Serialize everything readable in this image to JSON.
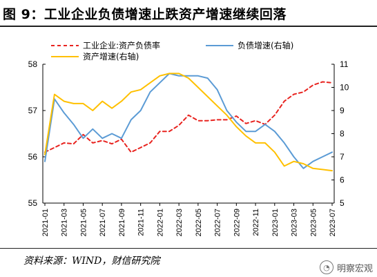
{
  "header": {
    "title": "图 9：工业企业负债增速止跌资产增速继续回落"
  },
  "footer": {
    "source": "资料来源：WIND，财信研究院",
    "watermark": "明察宏观",
    "watermark_icon": "wechat-icon"
  },
  "chart_data": {
    "type": "line",
    "title": "",
    "x": [
      "2021-01",
      "2021-02",
      "2021-03",
      "2021-04",
      "2021-05",
      "2021-06",
      "2021-07",
      "2021-08",
      "2021-09",
      "2021-10",
      "2021-11",
      "2021-12",
      "2022-01",
      "2022-02",
      "2022-03",
      "2022-04",
      "2022-05",
      "2022-06",
      "2022-07",
      "2022-08",
      "2022-09",
      "2022-10",
      "2022-11",
      "2022-12",
      "2023-01",
      "2023-02",
      "2023-03",
      "2023-04",
      "2023-05",
      "2023-06",
      "2023-07"
    ],
    "x_tick_labels": [
      "2021-01",
      "2021-03",
      "2021-05",
      "2021-07",
      "2021-09",
      "2021-11",
      "2022-01",
      "2022-03",
      "2022-05",
      "2022-07",
      "2022-09",
      "2022-11",
      "2023-01",
      "2023-03",
      "2023-05",
      "2023-07"
    ],
    "y_left": {
      "ticks": [
        "55",
        "56",
        "57",
        "58"
      ],
      "lim": [
        55,
        58
      ]
    },
    "y_right": {
      "ticks": [
        "5",
        "6",
        "7",
        "8",
        "9",
        "10",
        "11"
      ],
      "lim": [
        5,
        11
      ]
    },
    "grid": false,
    "legend_position": "top",
    "series": [
      {
        "name": "工业企业:资产负债率",
        "axis": "left",
        "style": "dashed",
        "color": "#e8231f",
        "values": [
          56.1,
          56.2,
          56.3,
          56.28,
          56.48,
          56.3,
          56.35,
          56.28,
          56.38,
          56.1,
          56.2,
          56.3,
          56.55,
          56.55,
          56.68,
          56.9,
          56.78,
          56.78,
          56.8,
          56.8,
          56.88,
          56.72,
          56.78,
          56.7,
          56.9,
          57.2,
          57.35,
          57.4,
          57.55,
          57.62,
          57.6
        ]
      },
      {
        "name": "负债增速(右轴)",
        "axis": "right",
        "style": "solid",
        "color": "#5b9bd5",
        "values": [
          6.8,
          9.5,
          8.9,
          8.4,
          7.8,
          8.2,
          7.8,
          8.0,
          7.8,
          8.6,
          9.0,
          9.8,
          10.2,
          10.6,
          10.5,
          10.5,
          10.5,
          10.4,
          9.9,
          9.0,
          8.5,
          8.1,
          8.1,
          8.4,
          8.1,
          7.6,
          7.0,
          6.5,
          6.8,
          7.0,
          7.2
        ]
      },
      {
        "name": "资产增速(右轴)",
        "axis": "right",
        "style": "solid",
        "color": "#ffc000",
        "values": [
          7.1,
          9.7,
          9.4,
          9.3,
          9.3,
          9.0,
          9.4,
          9.1,
          9.4,
          9.8,
          9.9,
          10.2,
          10.5,
          10.6,
          10.6,
          10.4,
          10.0,
          9.6,
          9.2,
          8.8,
          8.3,
          7.9,
          7.6,
          7.6,
          7.2,
          6.6,
          6.8,
          6.7,
          6.5,
          6.45,
          6.4
        ]
      }
    ]
  }
}
